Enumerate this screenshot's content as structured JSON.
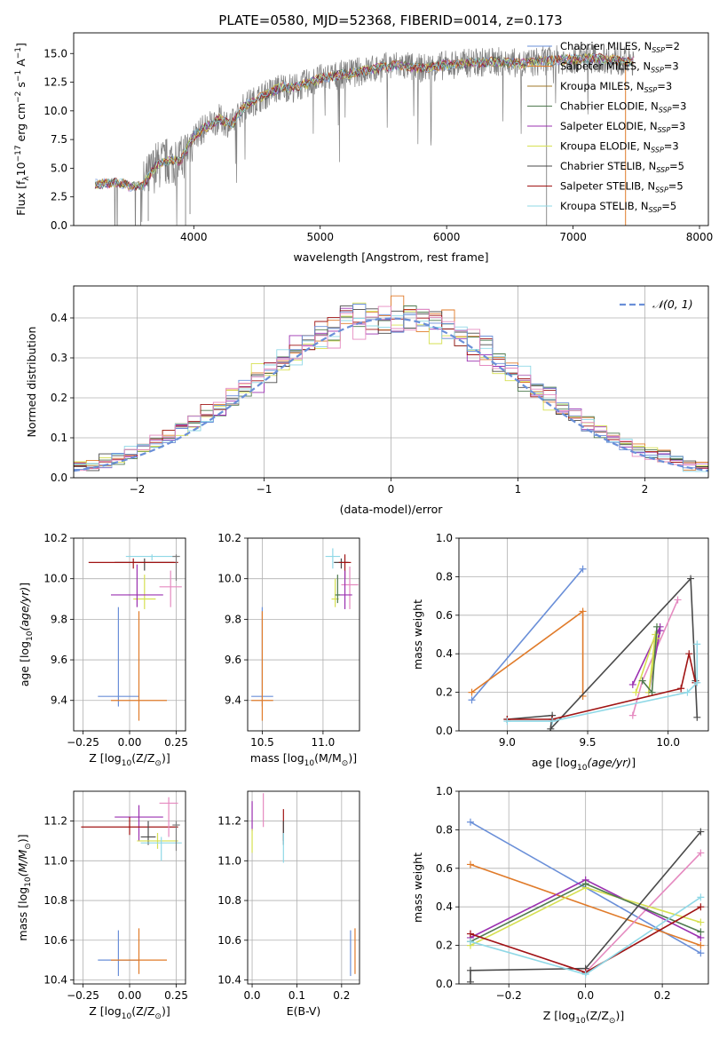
{
  "figure_title": "PLATE=0580, MJD=52368, FIBERID=0014, z=0.173",
  "legend_entries": [
    {
      "name": "Chabrier MILES, N<sub>SSP</sub>=2",
      "label_main": "Chabrier MILES, N",
      "label_sub": "SSP",
      "label_tail": "=2",
      "color": "#6a8fd8"
    },
    {
      "name": "Salpeter MILES",
      "label_main": "Salpeter MILES, N",
      "label_sub": "SSP",
      "label_tail": "=3",
      "color": "#e07b2a"
    },
    {
      "name": "Kroupa MILES",
      "label_main": "Kroupa MILES, N",
      "label_sub": "SSP",
      "label_tail": "=3",
      "color": "#a07a2a"
    },
    {
      "name": "Chabrier ELODIE",
      "label_main": "Chabrier ELODIE, N",
      "label_sub": "SSP",
      "label_tail": "=3",
      "color": "#4f7a4f"
    },
    {
      "name": "Salpeter ELODIE",
      "label_main": "Salpeter ELODIE, N",
      "label_sub": "SSP",
      "label_tail": "=3",
      "color": "#9b30b0"
    },
    {
      "name": "Kroupa ELODIE",
      "label_main": "Kroupa ELODIE, N",
      "label_sub": "SSP",
      "label_tail": "=3",
      "color": "#d6e052"
    },
    {
      "name": "Chabrier STELIB",
      "label_main": "Chabrier STELIB, N",
      "label_sub": "SSP",
      "label_tail": "=5",
      "color": "#4a4a4a"
    },
    {
      "name": "Salpeter STELIB",
      "label_main": "Salpeter STELIB, N",
      "label_sub": "SSP",
      "label_tail": "=5",
      "color": "#a01414"
    },
    {
      "name": "Kroupa STELIB",
      "label_main": "Kroupa STELIB, N",
      "label_sub": "SSP",
      "label_tail": "=5",
      "color": "#8fd8e6"
    }
  ],
  "extra_colors": {
    "pink": "#e58ac0",
    "data_grey": "#7f7f7f",
    "gaussian": "#6a8fd8"
  },
  "chart_data": [
    {
      "id": "spectrum",
      "type": "line",
      "xlabel": "wavelength [Angstrom, rest frame]",
      "ylabel": "Flux [f_λ 10^-17 erg cm^-2 s^-1 A^-1]",
      "xlim": [
        3050,
        8070
      ],
      "ylim": [
        0,
        16.8
      ],
      "xticks": [
        4000,
        5000,
        6000,
        7000,
        8000
      ],
      "yticks": [
        0.0,
        2.5,
        5.0,
        7.5,
        10.0,
        12.5,
        15.0
      ],
      "ytick_labels": [
        "0.0",
        "2.5",
        "5.0",
        "7.5",
        "10.0",
        "12.5",
        "15.0"
      ],
      "grid": false,
      "legend": "top-right",
      "continuum_x": [
        3220,
        3400,
        3500,
        3600,
        3700,
        3800,
        3900,
        4000,
        4100,
        4200,
        4300,
        4400,
        4500,
        4600,
        4700,
        4800,
        4900,
        5000,
        5200,
        5400,
        5600,
        5800,
        6000,
        6200,
        6400,
        6600,
        6800,
        7000,
        7200,
        7400
      ],
      "continuum_y": [
        3.6,
        3.8,
        3.4,
        3.5,
        5.2,
        5.6,
        5.7,
        7.8,
        8.6,
        9.3,
        8.8,
        10.4,
        11.0,
        11.6,
        12.1,
        12.0,
        12.4,
        12.8,
        13.2,
        13.6,
        14.0,
        13.7,
        14.0,
        14.2,
        14.3,
        14.1,
        14.4,
        14.5,
        14.6,
        14.3
      ],
      "spectrum_x_range": [
        3220,
        7480
      ]
    },
    {
      "id": "residuals",
      "type": "histogram",
      "xlabel": "(data-model)/error",
      "ylabel": "Normed distribution",
      "xlim": [
        -2.5,
        2.5
      ],
      "ylim": [
        0,
        0.48
      ],
      "xticks": [
        -2,
        -1,
        0,
        1,
        2
      ],
      "xtick_labels": [
        "−2",
        "−1",
        "0",
        "1",
        "2"
      ],
      "yticks": [
        0.0,
        0.1,
        0.2,
        0.3,
        0.4
      ],
      "ytick_labels": [
        "0.0",
        "0.1",
        "0.2",
        "0.3",
        "0.4"
      ],
      "grid": true,
      "legend": "top-right",
      "legend_label": "𝒩(0, 1)",
      "bin_width": 0.1
    },
    {
      "id": "age_vs_Z",
      "type": "errorbar",
      "xlabel_main": "Z [log",
      "xlabel_tail": "(Z/Z",
      "ylabel": "age  [log10(age/yr)]",
      "xlim": [
        -0.3,
        0.3
      ],
      "ylim": [
        9.25,
        10.2
      ],
      "xticks": [
        -0.25,
        0.0,
        0.25
      ],
      "xtick_labels": [
        "−0.25",
        "0.00",
        "0.25"
      ],
      "yticks": [
        9.4,
        9.6,
        9.8,
        10.0,
        10.2
      ],
      "ytick_labels": [
        "9.4",
        "9.6",
        "9.8",
        "10.0",
        "10.2"
      ],
      "grid": true,
      "points": [
        {
          "series": 0,
          "x": -0.06,
          "xerr": 0.11,
          "y": 9.42,
          "ylo": 9.37,
          "yhi": 9.86
        },
        {
          "series": 1,
          "x": 0.05,
          "xerr": 0.15,
          "y": 9.4,
          "ylo": 9.3,
          "yhi": 9.84
        },
        {
          "series": 5,
          "x": 0.08,
          "xerr": 0.06,
          "y": 9.9,
          "ylo": 9.85,
          "yhi": 10.02
        },
        {
          "series": 4,
          "x": 0.04,
          "xerr": 0.14,
          "y": 9.92,
          "ylo": 9.86,
          "yhi": 10.07
        },
        {
          "series": 6,
          "x": 0.08,
          "xerr": 0.16,
          "y": 10.08,
          "ylo": 10.04,
          "yhi": 10.1
        },
        {
          "series": 7,
          "x": 0.02,
          "xerr": 0.24,
          "y": 10.08,
          "ylo": 10.05,
          "yhi": 10.1
        },
        {
          "series": 8,
          "x": 0.12,
          "xerr": 0.14,
          "y": 10.11,
          "ylo": 10.09,
          "yhi": 10.12
        },
        {
          "series": 9,
          "x": 0.22,
          "xerr": 0.06,
          "y": 9.96,
          "ylo": 9.86,
          "yhi": 10.04
        },
        {
          "series": 2,
          "x": 0.25,
          "xerr": 0.02,
          "y": 10.11,
          "ylo": 9.99,
          "yhi": 10.12
        }
      ]
    },
    {
      "id": "age_vs_mass",
      "type": "errorbar",
      "xlabel_main": "mass [log",
      "xlabel_tail": "(M/M",
      "xlim": [
        10.38,
        11.3
      ],
      "ylim": [
        9.25,
        10.2
      ],
      "xticks": [
        10.5,
        11.0
      ],
      "xtick_labels": [
        "10.5",
        "11.0"
      ],
      "yticks": [
        9.4,
        9.6,
        9.8,
        10.0,
        10.2
      ],
      "ytick_labels": [
        "9.4",
        "9.6",
        "9.8",
        "10.0",
        "10.2"
      ],
      "grid": true,
      "points": [
        {
          "series": 0,
          "x": 10.5,
          "xerr": 0.09,
          "y": 9.42,
          "ylo": 9.37,
          "yhi": 9.86
        },
        {
          "series": 1,
          "x": 10.5,
          "xerr": 0.09,
          "y": 9.4,
          "ylo": 9.3,
          "yhi": 9.84
        },
        {
          "series": 8,
          "x": 11.08,
          "xerr": 0.06,
          "y": 10.11,
          "ylo": 10.05,
          "yhi": 10.15
        },
        {
          "series": 6,
          "x": 11.15,
          "xerr": 0.06,
          "y": 10.08,
          "ylo": 10.05,
          "yhi": 10.1
        },
        {
          "series": 7,
          "x": 11.18,
          "xerr": 0.05,
          "y": 10.08,
          "ylo": 10.0,
          "yhi": 10.12
        },
        {
          "series": 9,
          "x": 11.22,
          "xerr": 0.07,
          "y": 9.97,
          "ylo": 9.85,
          "yhi": 10.06
        },
        {
          "series": 4,
          "x": 11.18,
          "xerr": 0.06,
          "y": 9.92,
          "ylo": 9.85,
          "yhi": 10.04
        },
        {
          "series": 5,
          "x": 11.1,
          "xerr": 0.03,
          "y": 9.9,
          "ylo": 9.86,
          "yhi": 10.0
        },
        {
          "series": 3,
          "x": 11.12,
          "xerr": 0.02,
          "y": 9.92,
          "ylo": 9.88,
          "yhi": 10.02
        }
      ]
    },
    {
      "id": "weight_vs_age",
      "type": "line",
      "xlabel": "age  [log10(age/yr)]",
      "ylabel": "mass weight",
      "xlim": [
        8.7,
        10.25
      ],
      "ylim": [
        0,
        1
      ],
      "xticks": [
        9.0,
        9.5,
        10.0
      ],
      "xtick_labels": [
        "9.0",
        "9.5",
        "10.0"
      ],
      "yticks": [
        0.0,
        0.2,
        0.4,
        0.6,
        0.8,
        1.0
      ],
      "ytick_labels": [
        "0.0",
        "0.2",
        "0.4",
        "0.6",
        "0.8",
        "1.0"
      ],
      "grid": true,
      "series": [
        {
          "series": 0,
          "x": [
            8.78,
            9.47
          ],
          "y": [
            0.16,
            0.84
          ]
        },
        {
          "series": 1,
          "x": [
            8.78,
            9.47,
            9.47
          ],
          "y": [
            0.2,
            0.62,
            0.18
          ]
        },
        {
          "series": 9,
          "x": [
            9.78,
            9.84,
            10.06
          ],
          "y": [
            0.08,
            0.26,
            0.68
          ]
        },
        {
          "series": 4,
          "x": [
            9.78,
            9.95,
            9.88,
            9.95
          ],
          "y": [
            0.24,
            0.54,
            0.2,
            0.52
          ]
        },
        {
          "series": 5,
          "x": [
            9.8,
            9.92,
            9.88,
            9.93
          ],
          "y": [
            0.2,
            0.5,
            0.2,
            0.48
          ]
        },
        {
          "series": 3,
          "x": [
            9.84,
            9.9,
            9.93
          ],
          "y": [
            0.26,
            0.2,
            0.54
          ]
        },
        {
          "series": 6,
          "x": [
            9.0,
            9.28,
            9.27,
            10.14,
            10.18,
            10.17
          ],
          "y": [
            0.06,
            0.08,
            0.01,
            0.79,
            0.07,
            0.26
          ]
        },
        {
          "series": 7,
          "x": [
            9.0,
            9.28,
            10.08,
            10.13,
            10.17
          ],
          "y": [
            0.06,
            0.06,
            0.22,
            0.4,
            0.25
          ]
        },
        {
          "series": 8,
          "x": [
            9.0,
            9.28,
            10.12,
            10.18,
            10.18
          ],
          "y": [
            0.05,
            0.05,
            0.2,
            0.25,
            0.45
          ]
        }
      ]
    },
    {
      "id": "mass_vs_Z",
      "type": "errorbar",
      "xlabel_main": "Z [log",
      "xlabel_tail": "(Z/Z",
      "ylabel": "mass [log10(M/M⊙)]",
      "xlim": [
        -0.3,
        0.3
      ],
      "ylim": [
        10.38,
        11.35
      ],
      "xticks": [
        -0.25,
        0.0,
        0.25
      ],
      "xtick_labels": [
        "−0.25",
        "0.00",
        "0.25"
      ],
      "yticks": [
        10.4,
        10.6,
        10.8,
        11.0,
        11.2
      ],
      "ytick_labels": [
        "10.4",
        "10.6",
        "10.8",
        "11.0",
        "11.2"
      ],
      "grid": true,
      "points": [
        {
          "series": 0,
          "x": -0.06,
          "xerr": 0.11,
          "y": 10.5,
          "ylo": 10.42,
          "yhi": 10.65
        },
        {
          "series": 1,
          "x": 0.05,
          "xerr": 0.15,
          "y": 10.5,
          "ylo": 10.43,
          "yhi": 10.66
        },
        {
          "series": 4,
          "x": 0.05,
          "xerr": 0.13,
          "y": 11.22,
          "ylo": 11.1,
          "yhi": 11.28
        },
        {
          "series": 7,
          "x": 0.0,
          "xerr": 0.26,
          "y": 11.17,
          "ylo": 11.13,
          "yhi": 11.22
        },
        {
          "series": 6,
          "x": 0.1,
          "xerr": 0.04,
          "y": 11.12,
          "ylo": 11.08,
          "yhi": 11.2
        },
        {
          "series": 9,
          "x": 0.21,
          "xerr": 0.05,
          "y": 11.29,
          "ylo": 11.12,
          "yhi": 11.32
        },
        {
          "series": 5,
          "x": 0.15,
          "xerr": 0.11,
          "y": 11.1,
          "ylo": 11.06,
          "yhi": 11.14
        },
        {
          "series": 8,
          "x": 0.17,
          "xerr": 0.11,
          "y": 11.09,
          "ylo": 11.0,
          "yhi": 11.12
        },
        {
          "series": 2,
          "x": 0.25,
          "xerr": 0.02,
          "y": 11.18,
          "ylo": 11.05,
          "yhi": 11.2
        }
      ]
    },
    {
      "id": "mass_vs_ebv",
      "type": "errorbar",
      "xlabel": "E(B-V)",
      "xlim": [
        -0.01,
        0.24
      ],
      "ylim": [
        10.38,
        11.35
      ],
      "xticks": [
        0.0,
        0.1,
        0.2
      ],
      "xtick_labels": [
        "0.0",
        "0.1",
        "0.2"
      ],
      "yticks": [
        10.4,
        10.6,
        10.8,
        11.0,
        11.2
      ],
      "ytick_labels": [
        "10.4",
        "10.6",
        "10.8",
        "11.0",
        "11.2"
      ],
      "grid": true,
      "points": [
        {
          "series": 0,
          "x": 0.22,
          "xerr": 0.0,
          "y": 10.5,
          "ylo": 10.42,
          "yhi": 10.65
        },
        {
          "series": 1,
          "x": 0.23,
          "xerr": 0.0,
          "y": 10.5,
          "ylo": 10.43,
          "yhi": 10.66
        },
        {
          "series": 4,
          "x": 0.0,
          "xerr": 0.0,
          "y": 11.22,
          "ylo": 11.15,
          "yhi": 11.3
        },
        {
          "series": 5,
          "x": 0.0,
          "xerr": 0.0,
          "y": 11.1,
          "ylo": 11.04,
          "yhi": 11.16
        },
        {
          "series": 9,
          "x": 0.025,
          "xerr": 0.0,
          "y": 11.25,
          "ylo": 11.17,
          "yhi": 11.34
        },
        {
          "series": 7,
          "x": 0.07,
          "xerr": 0.0,
          "y": 11.17,
          "ylo": 11.1,
          "yhi": 11.26
        },
        {
          "series": 6,
          "x": 0.07,
          "xerr": 0.0,
          "y": 11.12,
          "ylo": 11.08,
          "yhi": 11.2
        },
        {
          "series": 8,
          "x": 0.07,
          "xerr": 0.0,
          "y": 11.09,
          "ylo": 10.99,
          "yhi": 11.14
        }
      ]
    },
    {
      "id": "weight_vs_Z",
      "type": "line",
      "xlabel_main": "Z [log",
      "xlabel_tail": "(Z/Z",
      "ylabel": "mass weight",
      "xlim": [
        -0.33,
        0.32
      ],
      "ylim": [
        0,
        1
      ],
      "xticks": [
        -0.2,
        0.0,
        0.2
      ],
      "xtick_labels": [
        "−0.2",
        "0.0",
        "0.2"
      ],
      "yticks": [
        0.0,
        0.2,
        0.4,
        0.6,
        0.8,
        1.0
      ],
      "ytick_labels": [
        "0.0",
        "0.2",
        "0.4",
        "0.6",
        "0.8",
        "1.0"
      ],
      "grid": true,
      "series": [
        {
          "series": 0,
          "x": [
            -0.3,
            0.3
          ],
          "y": [
            0.84,
            0.16
          ]
        },
        {
          "series": 1,
          "x": [
            -0.3,
            0.3
          ],
          "y": [
            0.62,
            0.2
          ]
        },
        {
          "series": 9,
          "x": [
            -0.3,
            0.0,
            0.3
          ],
          "y": [
            0.26,
            0.06,
            0.68
          ]
        },
        {
          "series": 4,
          "x": [
            -0.3,
            0.0,
            0.3
          ],
          "y": [
            0.24,
            0.54,
            0.24
          ]
        },
        {
          "series": 5,
          "x": [
            -0.3,
            0.0,
            0.3
          ],
          "y": [
            0.2,
            0.5,
            0.32
          ]
        },
        {
          "series": 3,
          "x": [
            -0.3,
            0.0,
            0.3
          ],
          "y": [
            0.22,
            0.52,
            0.27
          ]
        },
        {
          "series": 6,
          "x": [
            -0.3,
            -0.3,
            0.0,
            0.3
          ],
          "y": [
            0.01,
            0.07,
            0.08,
            0.79
          ]
        },
        {
          "series": 7,
          "x": [
            -0.3,
            0.0,
            0.3
          ],
          "y": [
            0.26,
            0.06,
            0.4
          ]
        },
        {
          "series": 8,
          "x": [
            -0.3,
            0.0,
            0.3
          ],
          "y": [
            0.22,
            0.05,
            0.45
          ]
        }
      ]
    }
  ]
}
